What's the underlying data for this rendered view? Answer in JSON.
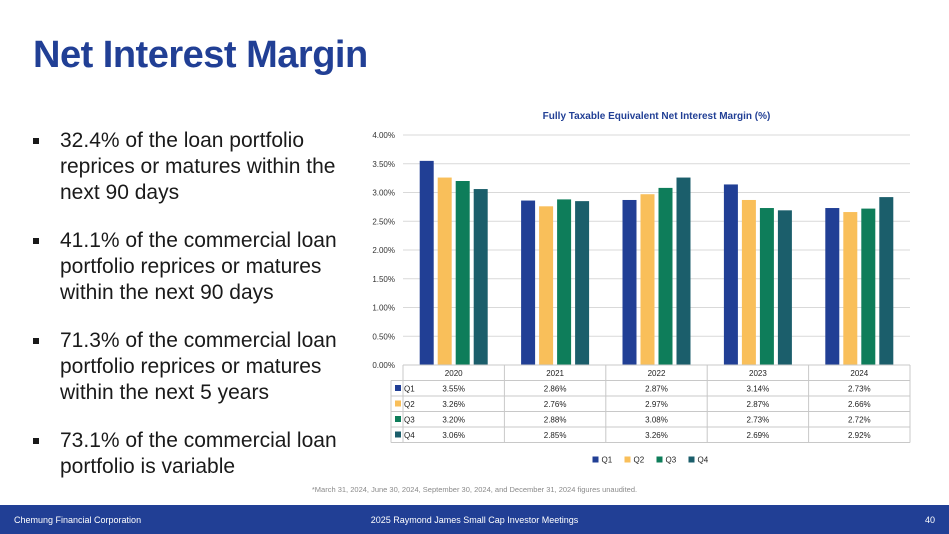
{
  "slide": {
    "title": "Net Interest Margin",
    "bullets": [
      "32.4% of the loan portfolio reprices or matures within the next 90 days",
      "41.1% of the commercial loan portfolio reprices or matures within the next 90 days",
      "71.3% of the commercial loan portfolio reprices or matures within the next 5 years",
      "73.1% of the commercial loan portfolio is variable"
    ],
    "footnote": "*March 31, 2024, June 30, 2024, September 30, 2024, and December 31, 2024 figures unaudited."
  },
  "footer": {
    "company": "Chemung Financial Corporation",
    "event": "2025 Raymond James Small Cap Investor Meetings",
    "page_number": "40"
  },
  "colors": {
    "brand": "#213f95",
    "Q1": "#213f95",
    "Q2": "#f9bf5a",
    "Q3": "#0e7d5a",
    "Q4": "#1b5e6b"
  },
  "chart_data": {
    "type": "bar",
    "title": "Fully Taxable Equivalent Net Interest Margin (%)",
    "categories": [
      "2020",
      "2021",
      "2022",
      "2023",
      "2024"
    ],
    "series": [
      {
        "name": "Q1",
        "values": [
          3.55,
          2.86,
          2.87,
          3.14,
          2.73
        ],
        "labels": [
          "3.55%",
          "2.86%",
          "2.87%",
          "3.14%",
          "2.73%"
        ]
      },
      {
        "name": "Q2",
        "values": [
          3.26,
          2.76,
          2.97,
          2.87,
          2.66
        ],
        "labels": [
          "3.26%",
          "2.76%",
          "2.97%",
          "2.87%",
          "2.66%"
        ]
      },
      {
        "name": "Q3",
        "values": [
          3.2,
          2.88,
          3.08,
          2.73,
          2.72
        ],
        "labels": [
          "3.20%",
          "2.88%",
          "3.08%",
          "2.73%",
          "2.72%"
        ]
      },
      {
        "name": "Q4",
        "values": [
          3.06,
          2.85,
          3.26,
          2.69,
          2.92
        ],
        "labels": [
          "3.06%",
          "2.85%",
          "3.26%",
          "2.69%",
          "2.92%"
        ]
      }
    ],
    "yticks": [
      "0.00%",
      "0.50%",
      "1.00%",
      "1.50%",
      "2.00%",
      "2.50%",
      "3.00%",
      "3.50%",
      "4.00%"
    ],
    "ylim": [
      0,
      4
    ],
    "grid": true,
    "legend_position": "bottom",
    "data_table": true
  }
}
